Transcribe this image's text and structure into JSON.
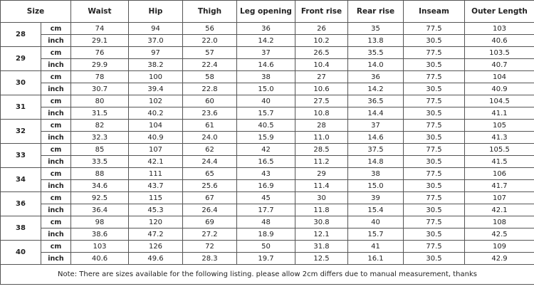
{
  "table": {
    "header": [
      "Size",
      "Waist",
      "Hip",
      "Thigh",
      "Leg opening",
      "Front rise",
      "Rear rise",
      "Inseam",
      "Outer Length"
    ],
    "groups": [
      {
        "size": "28",
        "rows": [
          {
            "unit": "cm",
            "values": [
              "74",
              "94",
              "56",
              "36",
              "26",
              "35",
              "77.5",
              "103"
            ]
          },
          {
            "unit": "inch",
            "values": [
              "29.1",
              "37.0",
              "22.0",
              "14.2",
              "10.2",
              "13.8",
              "30.5",
              "40.6"
            ]
          }
        ]
      },
      {
        "size": "29",
        "rows": [
          {
            "unit": "cm",
            "values": [
              "76",
              "97",
              "57",
              "37",
              "26.5",
              "35.5",
              "77.5",
              "103.5"
            ]
          },
          {
            "unit": "inch",
            "values": [
              "29.9",
              "38.2",
              "22.4",
              "14.6",
              "10.4",
              "14.0",
              "30.5",
              "40.7"
            ]
          }
        ]
      },
      {
        "size": "30",
        "rows": [
          {
            "unit": "cm",
            "values": [
              "78",
              "100",
              "58",
              "38",
              "27",
              "36",
              "77.5",
              "104"
            ]
          },
          {
            "unit": "inch",
            "values": [
              "30.7",
              "39.4",
              "22.8",
              "15.0",
              "10.6",
              "14.2",
              "30.5",
              "40.9"
            ]
          }
        ]
      },
      {
        "size": "31",
        "rows": [
          {
            "unit": "cm",
            "values": [
              "80",
              "102",
              "60",
              "40",
              "27.5",
              "36.5",
              "77.5",
              "104.5"
            ]
          },
          {
            "unit": "inch",
            "values": [
              "31.5",
              "40.2",
              "23.6",
              "15.7",
              "10.8",
              "14.4",
              "30.5",
              "41.1"
            ]
          }
        ]
      },
      {
        "size": "32",
        "rows": [
          {
            "unit": "cm",
            "values": [
              "82",
              "104",
              "61",
              "40.5",
              "28",
              "37",
              "77.5",
              "105"
            ]
          },
          {
            "unit": "inch",
            "values": [
              "32.3",
              "40.9",
              "24.0",
              "15.9",
              "11.0",
              "14.6",
              "30.5",
              "41.3"
            ]
          }
        ]
      },
      {
        "size": "33",
        "rows": [
          {
            "unit": "cm",
            "values": [
              "85",
              "107",
              "62",
              "42",
              "28.5",
              "37.5",
              "77.5",
              "105.5"
            ]
          },
          {
            "unit": "inch",
            "values": [
              "33.5",
              "42.1",
              "24.4",
              "16.5",
              "11.2",
              "14.8",
              "30.5",
              "41.5"
            ]
          }
        ]
      },
      {
        "size": "34",
        "rows": [
          {
            "unit": "cm",
            "values": [
              "88",
              "111",
              "65",
              "43",
              "29",
              "38",
              "77.5",
              "106"
            ]
          },
          {
            "unit": "inch",
            "values": [
              "34.6",
              "43.7",
              "25.6",
              "16.9",
              "11.4",
              "15.0",
              "30.5",
              "41.7"
            ]
          }
        ]
      },
      {
        "size": "36",
        "rows": [
          {
            "unit": "cm",
            "values": [
              "92.5",
              "115",
              "67",
              "45",
              "30",
              "39",
              "77.5",
              "107"
            ]
          },
          {
            "unit": "inch",
            "values": [
              "36.4",
              "45.3",
              "26.4",
              "17.7",
              "11.8",
              "15.4",
              "30.5",
              "42.1"
            ]
          }
        ]
      },
      {
        "size": "38",
        "rows": [
          {
            "unit": "cm",
            "values": [
              "98",
              "120",
              "69",
              "48",
              "30.8",
              "40",
              "77.5",
              "108"
            ]
          },
          {
            "unit": "inch",
            "values": [
              "38.6",
              "47.2",
              "27.2",
              "18.9",
              "12.1",
              "15.7",
              "30.5",
              "42.5"
            ]
          }
        ]
      },
      {
        "size": "40",
        "rows": [
          {
            "unit": "cm",
            "values": [
              "103",
              "126",
              "72",
              "50",
              "31.8",
              "41",
              "77.5",
              "109"
            ]
          },
          {
            "unit": "inch",
            "values": [
              "40.6",
              "49.6",
              "28.3",
              "19.7",
              "12.5",
              "16.1",
              "30.5",
              "42.9"
            ]
          }
        ]
      }
    ],
    "note": "Note: There are sizes available for the following listing. please allow 2cm differs due to manual measurement, thanks"
  }
}
